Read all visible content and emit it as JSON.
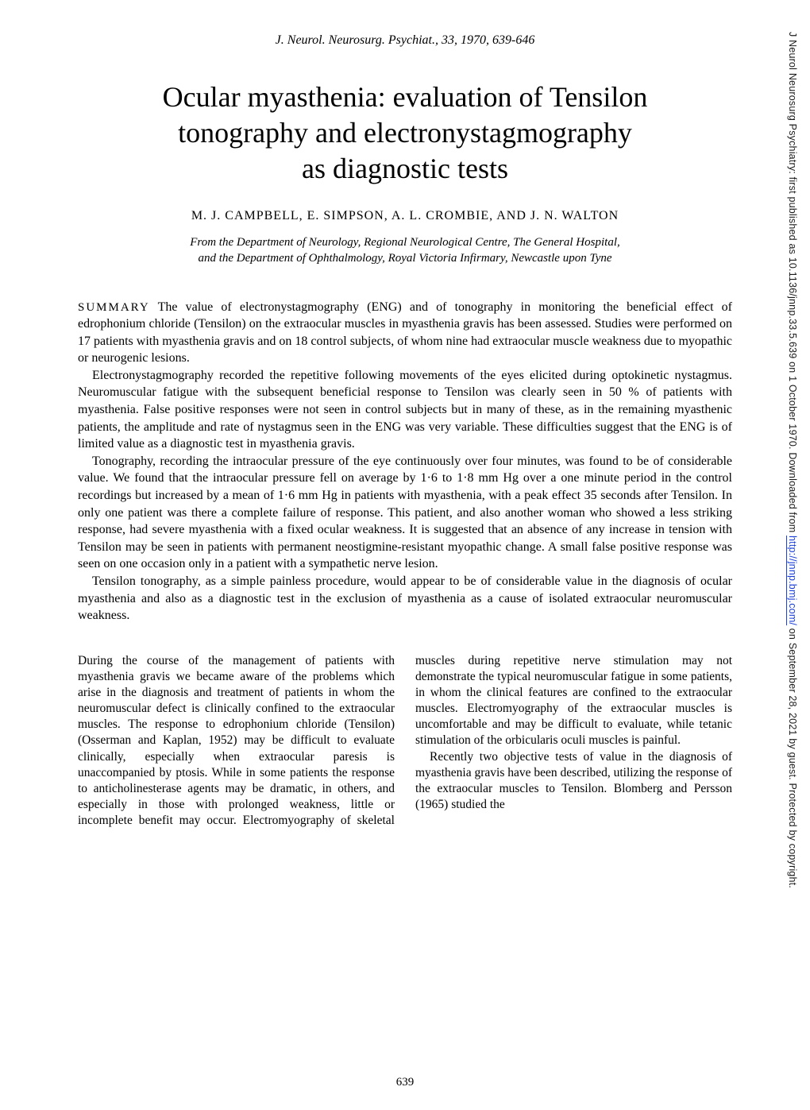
{
  "citation": "J. Neurol. Neurosurg. Psychiat., 33, 1970, 639-646",
  "title_line1": "Ocular myasthenia: evaluation of Tensilon",
  "title_line2": "tonography and electronystagmography",
  "title_line3": "as diagnostic tests",
  "authors": "M. J. CAMPBELL, E. SIMPSON, A. L. CROMBIE, AND J. N. WALTON",
  "affiliation_line1": "From the Department of Neurology, Regional Neurological Centre, The General Hospital,",
  "affiliation_line2": "and the Department of Ophthalmology, Royal Victoria Infirmary, Newcastle upon Tyne",
  "summary_label": "SUMMARY",
  "summary_p1": " The value of electronystagmography (ENG) and of tonography in monitoring the beneficial effect of edrophonium chloride (Tensilon) on the extraocular muscles in myasthenia gravis has been assessed. Studies were performed on 17 patients with myasthenia gravis and on 18 control subjects, of whom nine had extraocular muscle weakness due to myopathic or neurogenic lesions.",
  "summary_p2": "Electronystagmography recorded the repetitive following movements of the eyes elicited during optokinetic nystagmus. Neuromuscular fatigue with the subsequent beneficial response to Tensilon was clearly seen in 50 % of patients with myasthenia. False positive responses were not seen in control subjects but in many of these, as in the remaining myasthenic patients, the amplitude and rate of nystagmus seen in the ENG was very variable. These difficulties suggest that the ENG is of limited value as a diagnostic test in myasthenia gravis.",
  "summary_p3": "Tonography, recording the intraocular pressure of the eye continuously over four minutes, was found to be of considerable value. We found that the intraocular pressure fell on average by 1·6 to 1·8 mm Hg over a one minute period in the control recordings but increased by a mean of 1·6 mm Hg in patients with myasthenia, with a peak effect 35 seconds after Tensilon. In only one patient was there a complete failure of response. This patient, and also another woman who showed a less striking response, had severe myasthenia with a fixed ocular weakness. It is suggested that an absence of any increase in tension with Tensilon may be seen in patients with permanent neostigmine-resistant myopathic change. A small false positive response was seen on one occasion only in a patient with a sympathetic nerve lesion.",
  "summary_p4": "Tensilon tonography, as a simple painless procedure, would appear to be of considerable value in the diagnosis of ocular myasthenia and also as a diagnostic test in the exclusion of myasthenia as a cause of isolated extraocular neuromuscular weakness.",
  "body_p1": "During the course of the management of patients with myasthenia gravis we became aware of the problems which arise in the diagnosis and treatment of patients in whom the neuromuscular defect is clinically confined to the extraocular muscles. The response to edrophonium chloride (Tensilon) (Osserman and Kaplan, 1952) may be difficult to evaluate clinically, especially when extraocular paresis is unaccompanied by ptosis. While in some patients the response to anticholinesterase agents may be dramatic, in others, and especially in those with prolonged weakness, little or incomplete benefit may occur. Electromyography of skeletal muscles during repetitive nerve stimulation may not demonstrate the typical neuromuscular fatigue in some patients, in whom the clinical features are confined to the extraocular muscles. Electromyography of the extraocular muscles is uncomfortable and may be difficult to evaluate, while tetanic stimulation of the orbicularis oculi muscles is painful.",
  "body_p2": "Recently two objective tests of value in the diagnosis of myasthenia gravis have been described, utilizing the response of the extraocular muscles to Tensilon. Blomberg and Persson (1965) studied the",
  "page_number": "639",
  "sidebar_prefix": "J Neurol Neurosurg Psychiatry: first published as 10.1136/jnnp.33.5.639 on 1 October 1970. Downloaded from ",
  "sidebar_url": "http://jnnp.bmj.com/",
  "sidebar_suffix": " on September 28, 2021 by guest. Protected by copyright."
}
